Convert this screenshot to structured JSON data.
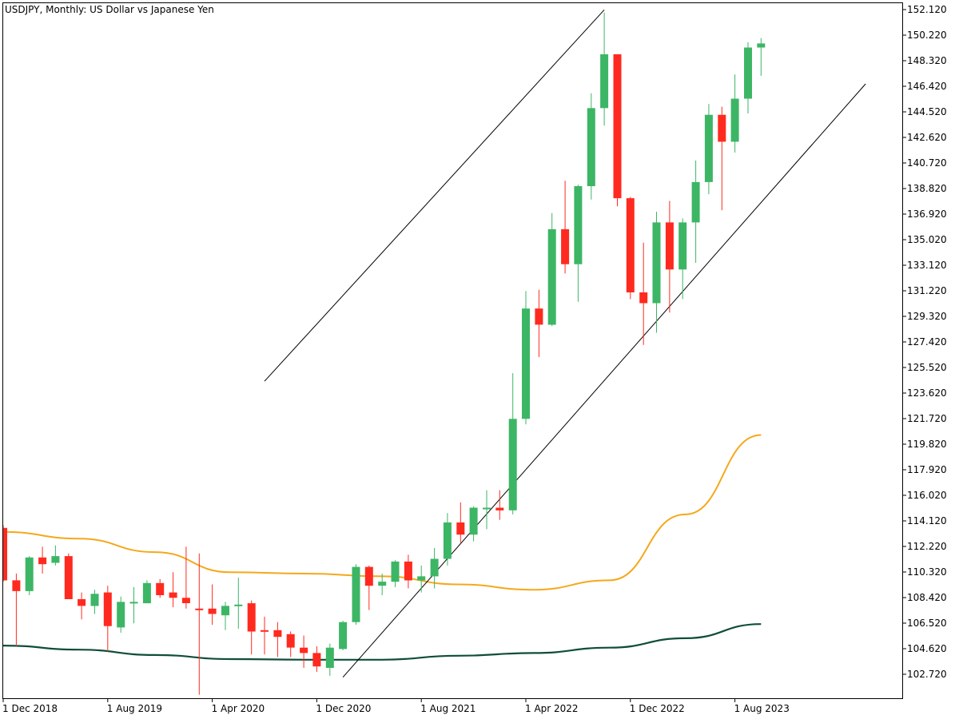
{
  "chart_data": {
    "type": "candlestick",
    "title": "USDJPY, Monthly:  US Dollar vs Japanese Yen",
    "symbol": "USDJPY",
    "timeframe": "Monthly",
    "x_tick_labels": [
      "1 Dec 2018",
      "1 Aug 2019",
      "1 Apr 2020",
      "1 Dec 2020",
      "1 Aug 2021",
      "1 Apr 2022",
      "1 Dec 2022",
      "1 Aug 2023"
    ],
    "y_tick_labels": [
      "152.120",
      "150.220",
      "148.320",
      "146.420",
      "144.520",
      "142.620",
      "140.720",
      "138.820",
      "136.920",
      "135.020",
      "133.120",
      "131.220",
      "129.320",
      "127.420",
      "125.520",
      "123.620",
      "121.720",
      "119.820",
      "117.920",
      "116.020",
      "114.120",
      "112.220",
      "110.320",
      "108.420",
      "106.520",
      "104.620",
      "102.720"
    ],
    "ylim": [
      101.0,
      152.5
    ],
    "grid": false,
    "colors": {
      "bull": "#3cb665",
      "bear": "#ff2a1f",
      "ma_fast": "#f5a81b",
      "ma_slow": "#0f4d3a",
      "channel": "#000000"
    },
    "candles": [
      {
        "date": "2018-12",
        "o": 113.6,
        "h": 113.8,
        "l": 109.6,
        "c": 109.7
      },
      {
        "date": "2019-01",
        "o": 109.7,
        "h": 110.2,
        "l": 104.8,
        "c": 108.9
      },
      {
        "date": "2019-02",
        "o": 108.9,
        "h": 111.5,
        "l": 108.6,
        "c": 111.4
      },
      {
        "date": "2019-03",
        "o": 111.4,
        "h": 112.2,
        "l": 110.2,
        "c": 110.9
      },
      {
        "date": "2019-04",
        "o": 111.0,
        "h": 112.3,
        "l": 110.8,
        "c": 111.5
      },
      {
        "date": "2019-05",
        "o": 111.5,
        "h": 111.7,
        "l": 108.3,
        "c": 108.3
      },
      {
        "date": "2019-06",
        "o": 108.3,
        "h": 108.8,
        "l": 106.8,
        "c": 107.8
      },
      {
        "date": "2019-07",
        "o": 107.8,
        "h": 109.0,
        "l": 107.2,
        "c": 108.7
      },
      {
        "date": "2019-08",
        "o": 108.8,
        "h": 109.3,
        "l": 104.4,
        "c": 106.3
      },
      {
        "date": "2019-09",
        "o": 106.2,
        "h": 108.5,
        "l": 105.8,
        "c": 108.1
      },
      {
        "date": "2019-10",
        "o": 108.0,
        "h": 109.2,
        "l": 106.5,
        "c": 108.1
      },
      {
        "date": "2019-11",
        "o": 108.0,
        "h": 109.7,
        "l": 108.0,
        "c": 109.5
      },
      {
        "date": "2019-12",
        "o": 109.5,
        "h": 109.8,
        "l": 108.4,
        "c": 108.6
      },
      {
        "date": "2020-01",
        "o": 108.8,
        "h": 110.3,
        "l": 107.7,
        "c": 108.4
      },
      {
        "date": "2020-02",
        "o": 108.4,
        "h": 112.2,
        "l": 107.6,
        "c": 108.0
      },
      {
        "date": "2020-03",
        "o": 107.6,
        "h": 111.7,
        "l": 101.2,
        "c": 107.5
      },
      {
        "date": "2020-04",
        "o": 107.6,
        "h": 109.4,
        "l": 106.4,
        "c": 107.2
      },
      {
        "date": "2020-05",
        "o": 107.1,
        "h": 108.1,
        "l": 106.0,
        "c": 107.8
      },
      {
        "date": "2020-06",
        "o": 107.8,
        "h": 109.9,
        "l": 106.1,
        "c": 107.9
      },
      {
        "date": "2020-07",
        "o": 108.0,
        "h": 108.2,
        "l": 104.2,
        "c": 105.9
      },
      {
        "date": "2020-08",
        "o": 106.0,
        "h": 107.0,
        "l": 104.2,
        "c": 105.9
      },
      {
        "date": "2020-09",
        "o": 106.0,
        "h": 106.6,
        "l": 104.0,
        "c": 105.5
      },
      {
        "date": "2020-10",
        "o": 105.7,
        "h": 105.9,
        "l": 104.0,
        "c": 104.7
      },
      {
        "date": "2020-11",
        "o": 104.7,
        "h": 105.6,
        "l": 103.2,
        "c": 104.3
      },
      {
        "date": "2020-12",
        "o": 104.3,
        "h": 104.8,
        "l": 102.9,
        "c": 103.3
      },
      {
        "date": "2021-01",
        "o": 103.2,
        "h": 105.0,
        "l": 102.6,
        "c": 104.7
      },
      {
        "date": "2021-02",
        "o": 104.6,
        "h": 106.7,
        "l": 104.5,
        "c": 106.6
      },
      {
        "date": "2021-03",
        "o": 106.6,
        "h": 110.9,
        "l": 106.4,
        "c": 110.7
      },
      {
        "date": "2021-04",
        "o": 110.7,
        "h": 110.8,
        "l": 107.5,
        "c": 109.3
      },
      {
        "date": "2021-05",
        "o": 109.3,
        "h": 110.2,
        "l": 108.6,
        "c": 109.6
      },
      {
        "date": "2021-06",
        "o": 109.6,
        "h": 111.2,
        "l": 109.2,
        "c": 111.1
      },
      {
        "date": "2021-07",
        "o": 111.1,
        "h": 111.6,
        "l": 109.1,
        "c": 109.7
      },
      {
        "date": "2021-08",
        "o": 109.7,
        "h": 110.8,
        "l": 108.8,
        "c": 110.0
      },
      {
        "date": "2021-09",
        "o": 110.0,
        "h": 112.1,
        "l": 109.1,
        "c": 111.3
      },
      {
        "date": "2021-10",
        "o": 111.3,
        "h": 114.7,
        "l": 110.8,
        "c": 114.0
      },
      {
        "date": "2021-11",
        "o": 114.0,
        "h": 115.5,
        "l": 112.5,
        "c": 113.1
      },
      {
        "date": "2021-12",
        "o": 113.1,
        "h": 115.2,
        "l": 112.6,
        "c": 115.1
      },
      {
        "date": "2022-01",
        "o": 115.1,
        "h": 116.4,
        "l": 113.5,
        "c": 115.1
      },
      {
        "date": "2022-02",
        "o": 115.1,
        "h": 116.4,
        "l": 114.2,
        "c": 114.9
      },
      {
        "date": "2022-03",
        "o": 114.9,
        "h": 125.1,
        "l": 114.6,
        "c": 121.7
      },
      {
        "date": "2022-04",
        "o": 121.7,
        "h": 131.2,
        "l": 121.3,
        "c": 129.9
      },
      {
        "date": "2022-05",
        "o": 129.9,
        "h": 131.3,
        "l": 126.3,
        "c": 128.7
      },
      {
        "date": "2022-06",
        "o": 128.7,
        "h": 137.0,
        "l": 128.6,
        "c": 135.8
      },
      {
        "date": "2022-07",
        "o": 135.8,
        "h": 139.4,
        "l": 132.5,
        "c": 133.2
      },
      {
        "date": "2022-08",
        "o": 133.2,
        "h": 139.1,
        "l": 130.4,
        "c": 139.0
      },
      {
        "date": "2022-09",
        "o": 139.0,
        "h": 145.9,
        "l": 138.0,
        "c": 144.8
      },
      {
        "date": "2022-10",
        "o": 144.8,
        "h": 151.9,
        "l": 143.5,
        "c": 148.8
      },
      {
        "date": "2022-11",
        "o": 148.8,
        "h": 148.8,
        "l": 137.5,
        "c": 138.1
      },
      {
        "date": "2022-12",
        "o": 138.1,
        "h": 138.2,
        "l": 130.6,
        "c": 131.1
      },
      {
        "date": "2023-01",
        "o": 131.1,
        "h": 134.8,
        "l": 127.2,
        "c": 130.3
      },
      {
        "date": "2023-02",
        "o": 130.3,
        "h": 137.1,
        "l": 128.1,
        "c": 136.3
      },
      {
        "date": "2023-03",
        "o": 136.3,
        "h": 137.9,
        "l": 129.6,
        "c": 132.8
      },
      {
        "date": "2023-04",
        "o": 132.8,
        "h": 136.6,
        "l": 130.6,
        "c": 136.3
      },
      {
        "date": "2023-05",
        "o": 136.3,
        "h": 140.9,
        "l": 133.3,
        "c": 139.3
      },
      {
        "date": "2023-06",
        "o": 139.3,
        "h": 145.1,
        "l": 138.4,
        "c": 144.3
      },
      {
        "date": "2023-07",
        "o": 144.3,
        "h": 144.9,
        "l": 137.2,
        "c": 142.3
      },
      {
        "date": "2023-08",
        "o": 142.3,
        "h": 147.3,
        "l": 141.5,
        "c": 145.5
      },
      {
        "date": "2023-09",
        "o": 145.5,
        "h": 149.7,
        "l": 144.4,
        "c": 149.3
      },
      {
        "date": "2023-10",
        "o": 149.3,
        "h": 150.0,
        "l": 147.2,
        "c": 149.6
      }
    ],
    "ma_fast": [
      113.3,
      112.8,
      111.8,
      110.3,
      110.2,
      110.0,
      109.4,
      109.0,
      109.7,
      114.6,
      120.5
    ],
    "ma_slow": [
      104.85,
      104.55,
      104.15,
      103.85,
      103.8,
      103.8,
      104.1,
      104.3,
      104.7,
      105.4,
      106.45
    ],
    "channel_upper": [
      [
        20,
        124.5
      ],
      [
        46,
        152.1
      ]
    ],
    "channel_lower": [
      [
        26,
        102.5
      ],
      [
        66,
        146.6
      ]
    ]
  }
}
